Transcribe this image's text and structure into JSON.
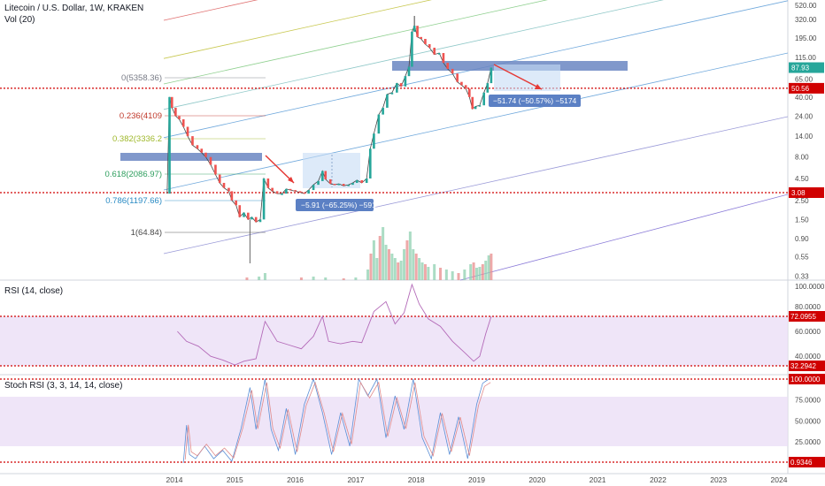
{
  "header": {
    "title": "Litecoin / U.S. Dollar, 1W, KRAKEN",
    "vol_label": "Vol (20)"
  },
  "chart_data": [
    {
      "type": "candlestick",
      "scale": "log",
      "title": "Litecoin / U.S. Dollar, 1W, KRAKEN",
      "y_ticks": [
        "520.00",
        "320.00",
        "195.00",
        "115.00",
        "65.00",
        "40.00",
        "24.00",
        "14.00",
        "8.00",
        "4.50",
        "2.50",
        "1.50",
        "0.90",
        "0.55",
        "0.33"
      ],
      "y_tick_values": [
        520,
        320,
        195,
        115,
        65,
        40,
        24,
        14,
        8,
        4.5,
        2.5,
        1.5,
        0.9,
        0.55,
        0.33
      ],
      "x_ticks": [
        "2014",
        "2015",
        "2016",
        "2017",
        "2018",
        "2019",
        "2020",
        "2021",
        "2022",
        "2023",
        "2024"
      ],
      "price_path": [
        [
          2013.88,
          3.0
        ],
        [
          2013.92,
          40
        ],
        [
          2013.96,
          30
        ],
        [
          2014.02,
          24
        ],
        [
          2014.08,
          22
        ],
        [
          2014.15,
          18
        ],
        [
          2014.22,
          14
        ],
        [
          2014.3,
          11
        ],
        [
          2014.38,
          10
        ],
        [
          2014.45,
          9
        ],
        [
          2014.52,
          8
        ],
        [
          2014.6,
          6.5
        ],
        [
          2014.68,
          5
        ],
        [
          2014.75,
          4
        ],
        [
          2014.82,
          3.5
        ],
        [
          2014.9,
          3.2
        ],
        [
          2014.95,
          2.5
        ],
        [
          2015.02,
          2.2
        ],
        [
          2015.08,
          1.6
        ],
        [
          2015.15,
          1.8
        ],
        [
          2015.22,
          1.5
        ],
        [
          2015.28,
          1.6
        ],
        [
          2015.35,
          1.4
        ],
        [
          2015.42,
          1.5
        ],
        [
          2015.48,
          4.5
        ],
        [
          2015.55,
          3.5
        ],
        [
          2015.62,
          3.2
        ],
        [
          2015.7,
          3.0
        ],
        [
          2015.78,
          3.0
        ],
        [
          2015.85,
          3.4
        ],
        [
          2015.92,
          3.3
        ],
        [
          2016.0,
          3.2
        ],
        [
          2016.08,
          3.1
        ],
        [
          2016.15,
          3.0
        ],
        [
          2016.22,
          3.3
        ],
        [
          2016.3,
          3.8
        ],
        [
          2016.38,
          4.2
        ],
        [
          2016.45,
          5.5
        ],
        [
          2016.5,
          4.4
        ],
        [
          2016.58,
          3.9
        ],
        [
          2016.65,
          3.8
        ],
        [
          2016.72,
          3.9
        ],
        [
          2016.8,
          3.7
        ],
        [
          2016.88,
          3.8
        ],
        [
          2016.95,
          4.0
        ],
        [
          2017.02,
          4.3
        ],
        [
          2017.1,
          4.0
        ],
        [
          2017.18,
          4.5
        ],
        [
          2017.24,
          10
        ],
        [
          2017.3,
          15
        ],
        [
          2017.38,
          25
        ],
        [
          2017.45,
          30
        ],
        [
          2017.52,
          43
        ],
        [
          2017.6,
          45
        ],
        [
          2017.68,
          58
        ],
        [
          2017.75,
          53
        ],
        [
          2017.82,
          70
        ],
        [
          2017.88,
          90
        ],
        [
          2017.93,
          230
        ],
        [
          2017.97,
          270
        ],
        [
          2018.02,
          200
        ],
        [
          2018.08,
          190
        ],
        [
          2018.15,
          165
        ],
        [
          2018.22,
          150
        ],
        [
          2018.3,
          125
        ],
        [
          2018.38,
          130
        ],
        [
          2018.45,
          100
        ],
        [
          2018.52,
          85
        ],
        [
          2018.6,
          75
        ],
        [
          2018.68,
          60
        ],
        [
          2018.75,
          55
        ],
        [
          2018.82,
          50
        ],
        [
          2018.88,
          40
        ],
        [
          2018.93,
          29
        ],
        [
          2018.98,
          31
        ],
        [
          2019.05,
          32
        ],
        [
          2019.12,
          45
        ],
        [
          2019.18,
          58
        ],
        [
          2019.24,
          88
        ]
      ],
      "fibonacci_levels": [
        {
          "ratio": "0",
          "value": 5358.36,
          "label": "0(5358.36)",
          "color": "#787b86"
        },
        {
          "ratio": "0.236",
          "value": 4109,
          "label": "0.236(4109",
          "color": "#c0392b"
        },
        {
          "ratio": "0.382",
          "value": 3336,
          "label": "0.382(3336.2",
          "color": "#9fb82b"
        },
        {
          "ratio": "0.618",
          "value": 2086.97,
          "label": "0.618(2086.97)",
          "color": "#2e9e5e"
        },
        {
          "ratio": "0.786",
          "value": 1197.66,
          "label": "0.786(1197.66)",
          "color": "#2a8bc4"
        },
        {
          "ratio": "1",
          "value": 64.84,
          "label": "1(64.84)",
          "color": "#4a4a4a"
        }
      ],
      "horizontal_lines": [
        {
          "value": 50.56,
          "label": "50.56",
          "color": "#d00000"
        },
        {
          "value": 3.08,
          "label": "3.08",
          "color": "#d00000"
        }
      ],
      "last_price": {
        "value": 87.93,
        "label": "87.93",
        "color": "#26a69a"
      },
      "measurements": [
        {
          "label": "−5.91 (−65.25%) −591"
        },
        {
          "label": "−51.74 (−50.57%) −5174"
        }
      ],
      "volume_label": "Vol (20)"
    },
    {
      "type": "line",
      "title": "RSI (14, close)",
      "y_ticks": [
        "100.0000",
        "80.0000",
        "60.0000",
        "40.0000"
      ],
      "y_tick_values": [
        100,
        80,
        60,
        40
      ],
      "horizontal_lines": [
        {
          "value": 72.0955,
          "label": "72.0955",
          "color": "#d00000"
        },
        {
          "value": 32.2942,
          "label": "32.2942",
          "color": "#d00000"
        }
      ],
      "series": [
        {
          "values": [
            [
              2014.05,
              60
            ],
            [
              2014.2,
              52
            ],
            [
              2014.4,
              48
            ],
            [
              2014.6,
              40
            ],
            [
              2014.8,
              37
            ],
            [
              2015.0,
              33
            ],
            [
              2015.15,
              36
            ],
            [
              2015.35,
              38
            ],
            [
              2015.5,
              68
            ],
            [
              2015.7,
              52
            ],
            [
              2015.9,
              49
            ],
            [
              2016.1,
              46
            ],
            [
              2016.3,
              56
            ],
            [
              2016.45,
              72
            ],
            [
              2016.55,
              52
            ],
            [
              2016.75,
              50
            ],
            [
              2016.95,
              52
            ],
            [
              2017.1,
              51
            ],
            [
              2017.3,
              76
            ],
            [
              2017.5,
              84
            ],
            [
              2017.65,
              66
            ],
            [
              2017.8,
              75
            ],
            [
              2017.93,
              98
            ],
            [
              2018.05,
              82
            ],
            [
              2018.2,
              70
            ],
            [
              2018.4,
              64
            ],
            [
              2018.6,
              52
            ],
            [
              2018.8,
              43
            ],
            [
              2018.95,
              36
            ],
            [
              2019.05,
              40
            ],
            [
              2019.15,
              58
            ],
            [
              2019.24,
              72
            ]
          ]
        }
      ]
    },
    {
      "type": "line",
      "title": "Stoch RSI (3, 3, 14, 14, close)",
      "y_ticks": [
        "75.0000",
        "50.0000",
        "25.0000"
      ],
      "y_tick_values": [
        75,
        50,
        25
      ],
      "horizontal_lines": [
        {
          "value": 100,
          "label": "100.0000",
          "color": "#d00000"
        },
        {
          "value": 0.9346,
          "label": "0.9346",
          "color": "#d00000"
        }
      ],
      "series": [
        {
          "name": "K",
          "values": [
            [
              2014.15,
              0
            ],
            [
              2014.2,
              45
            ],
            [
              2014.25,
              10
            ],
            [
              2014.35,
              5
            ],
            [
              2014.5,
              20
            ],
            [
              2014.65,
              5
            ],
            [
              2014.8,
              15
            ],
            [
              2014.95,
              2
            ],
            [
              2015.1,
              40
            ],
            [
              2015.25,
              90
            ],
            [
              2015.35,
              40
            ],
            [
              2015.5,
              100
            ],
            [
              2015.6,
              40
            ],
            [
              2015.72,
              15
            ],
            [
              2015.85,
              65
            ],
            [
              2016.0,
              10
            ],
            [
              2016.15,
              70
            ],
            [
              2016.3,
              100
            ],
            [
              2016.45,
              60
            ],
            [
              2016.6,
              10
            ],
            [
              2016.75,
              60
            ],
            [
              2016.9,
              20
            ],
            [
              2017.05,
              100
            ],
            [
              2017.2,
              80
            ],
            [
              2017.35,
              100
            ],
            [
              2017.5,
              30
            ],
            [
              2017.65,
              80
            ],
            [
              2017.8,
              40
            ],
            [
              2017.95,
              100
            ],
            [
              2018.1,
              30
            ],
            [
              2018.25,
              5
            ],
            [
              2018.4,
              60
            ],
            [
              2018.55,
              10
            ],
            [
              2018.7,
              55
            ],
            [
              2018.85,
              5
            ],
            [
              2019.0,
              70
            ],
            [
              2019.1,
              95
            ],
            [
              2019.2,
              100
            ]
          ]
        }
      ]
    }
  ]
}
